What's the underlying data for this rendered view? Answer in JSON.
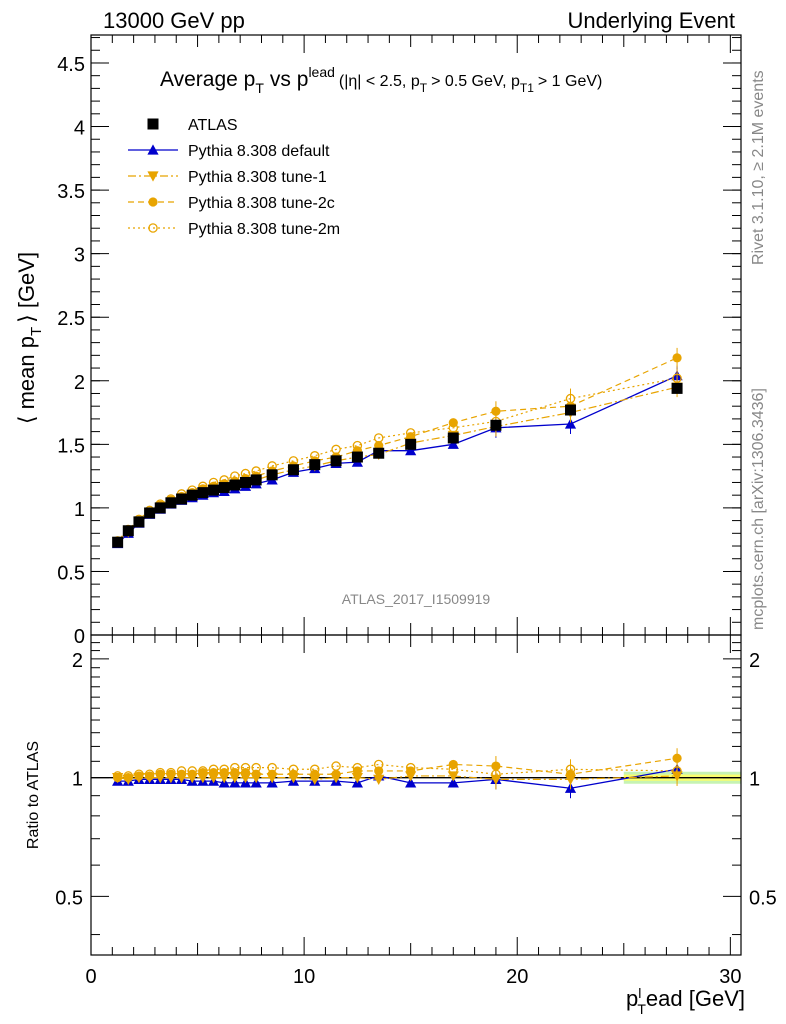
{
  "header": {
    "left": "13000 GeV pp",
    "right": "Underlying Event"
  },
  "side_labels": {
    "rivet": "Rivet 3.1.10, ≥ 2.1M events",
    "mcplots": "mcplots.cern.ch [arXiv:1306.3436]"
  },
  "watermark": "ATLAS_2017_I1509919",
  "colors": {
    "atlas": "#000000",
    "default": "#0000cc",
    "tunes": "#e8a400",
    "band_inner": "#ffff66",
    "band_outer": "#b8f0a0"
  },
  "chart_data": [
    {
      "type": "scatter",
      "title_parts": {
        "main": "Average p",
        "sub_T": "T",
        "vs": "vs p",
        "sup_lead": "lead",
        "cuts": "(|η| < 2.5, p",
        "cut_pt": "> 0.5 GeV, p",
        "sub_T1": "T1",
        "cut_pt1": "> 1 GeV)"
      },
      "ylabel_parts": {
        "main": "⟨ mean p",
        "sub": "T",
        "rest": "⟩ [GeV]"
      },
      "xlim": [
        0,
        30.5
      ],
      "ylim": [
        0,
        4.72
      ],
      "yticks": [
        "0.5",
        "1",
        "1.5",
        "2",
        "2.5",
        "3",
        "3.5",
        "4",
        "4.5"
      ],
      "ytick_values": [
        0.5,
        1,
        1.5,
        2,
        2.5,
        3,
        3.5,
        4,
        4.5
      ],
      "x": [
        1.25,
        1.75,
        2.25,
        2.75,
        3.25,
        3.75,
        4.25,
        4.75,
        5.25,
        5.75,
        6.25,
        6.75,
        7.25,
        7.75,
        8.5,
        9.5,
        10.5,
        11.5,
        12.5,
        13.5,
        15,
        17,
        19,
        22.5,
        27.5
      ],
      "legend": [
        "ATLAS",
        "Pythia 8.308 default",
        "Pythia 8.308 tune-1",
        "Pythia 8.308 tune-2c",
        "Pythia 8.308 tune-2m"
      ],
      "series": [
        {
          "name": "ATLAS",
          "values": [
            0.73,
            0.82,
            0.89,
            0.96,
            1.0,
            1.04,
            1.07,
            1.1,
            1.12,
            1.14,
            1.16,
            1.18,
            1.2,
            1.22,
            1.26,
            1.3,
            1.34,
            1.37,
            1.4,
            1.43,
            1.5,
            1.55,
            1.65,
            1.77,
            1.94
          ]
        },
        {
          "name": "Pythia 8.308 default",
          "values": [
            0.72,
            0.8,
            0.88,
            0.95,
            0.99,
            1.03,
            1.06,
            1.08,
            1.1,
            1.12,
            1.13,
            1.15,
            1.17,
            1.19,
            1.22,
            1.28,
            1.31,
            1.35,
            1.36,
            1.45,
            1.45,
            1.5,
            1.63,
            1.66,
            2.04
          ]
        },
        {
          "name": "Pythia 8.308 tune-1",
          "values": [
            0.73,
            0.81,
            0.89,
            0.96,
            1.0,
            1.04,
            1.07,
            1.1,
            1.12,
            1.14,
            1.16,
            1.18,
            1.2,
            1.22,
            1.26,
            1.3,
            1.33,
            1.37,
            1.4,
            1.42,
            1.51,
            1.57,
            1.64,
            1.75,
            1.95
          ]
        },
        {
          "name": "Pythia 8.308 tune-2c",
          "values": [
            0.73,
            0.82,
            0.9,
            0.97,
            1.02,
            1.06,
            1.09,
            1.12,
            1.15,
            1.17,
            1.19,
            1.21,
            1.23,
            1.25,
            1.29,
            1.33,
            1.37,
            1.4,
            1.45,
            1.49,
            1.56,
            1.67,
            1.76,
            1.8,
            2.18
          ]
        },
        {
          "name": "Pythia 8.308 tune-2m",
          "values": [
            0.74,
            0.83,
            0.91,
            0.98,
            1.03,
            1.07,
            1.11,
            1.14,
            1.17,
            1.2,
            1.22,
            1.25,
            1.27,
            1.29,
            1.33,
            1.37,
            1.41,
            1.46,
            1.49,
            1.55,
            1.59,
            1.63,
            1.68,
            1.86,
            2.02
          ]
        }
      ],
      "watermark": "ATLAS_2017_I1509919"
    },
    {
      "type": "scatter",
      "ylabel": "Ratio to ATLAS",
      "xlabel_parts": {
        "main": "p",
        "sup": "l",
        "sub": "T",
        "rest": "ead [GeV]"
      },
      "xlim": [
        0,
        30.5
      ],
      "ylim_note": "log scale",
      "ylim": [
        0.355,
        2.3
      ],
      "yticks": [
        "0.5",
        "1",
        "2"
      ],
      "ytick_values": [
        0.5,
        1,
        2
      ],
      "xticks": [
        "0",
        "10",
        "20",
        "30"
      ],
      "xtick_values": [
        0,
        10,
        20,
        30
      ],
      "x": [
        1.25,
        1.75,
        2.25,
        2.75,
        3.25,
        3.75,
        4.25,
        4.75,
        5.25,
        5.75,
        6.25,
        6.75,
        7.25,
        7.75,
        8.5,
        9.5,
        10.5,
        11.5,
        12.5,
        13.5,
        15,
        17,
        19,
        22.5,
        27.5
      ],
      "series": [
        {
          "name": "Pythia 8.308 default",
          "values": [
            0.98,
            0.98,
            0.99,
            0.99,
            0.99,
            0.99,
            0.99,
            0.98,
            0.98,
            0.98,
            0.97,
            0.97,
            0.97,
            0.97,
            0.97,
            0.98,
            0.98,
            0.98,
            0.97,
            1.01,
            0.97,
            0.97,
            0.99,
            0.94,
            1.05
          ]
        },
        {
          "name": "Pythia 8.308 tune-1",
          "values": [
            1.0,
            0.99,
            1.0,
            1.0,
            1.0,
            1.0,
            1.0,
            1.0,
            1.0,
            1.0,
            1.0,
            1.0,
            1.0,
            1.0,
            1.0,
            1.0,
            0.99,
            1.0,
            1.0,
            0.99,
            1.01,
            1.01,
            0.99,
            0.99,
            1.01
          ]
        },
        {
          "name": "Pythia 8.308 tune-2c",
          "values": [
            1.0,
            1.0,
            1.01,
            1.01,
            1.02,
            1.02,
            1.02,
            1.02,
            1.03,
            1.03,
            1.03,
            1.03,
            1.03,
            1.02,
            1.02,
            1.02,
            1.02,
            1.02,
            1.04,
            1.04,
            1.04,
            1.08,
            1.07,
            1.02,
            1.12
          ]
        },
        {
          "name": "Pythia 8.308 tune-2m",
          "values": [
            1.01,
            1.01,
            1.02,
            1.02,
            1.03,
            1.03,
            1.04,
            1.04,
            1.04,
            1.05,
            1.05,
            1.06,
            1.06,
            1.06,
            1.06,
            1.05,
            1.05,
            1.07,
            1.06,
            1.08,
            1.06,
            1.05,
            1.02,
            1.05,
            1.04
          ]
        }
      ]
    }
  ]
}
